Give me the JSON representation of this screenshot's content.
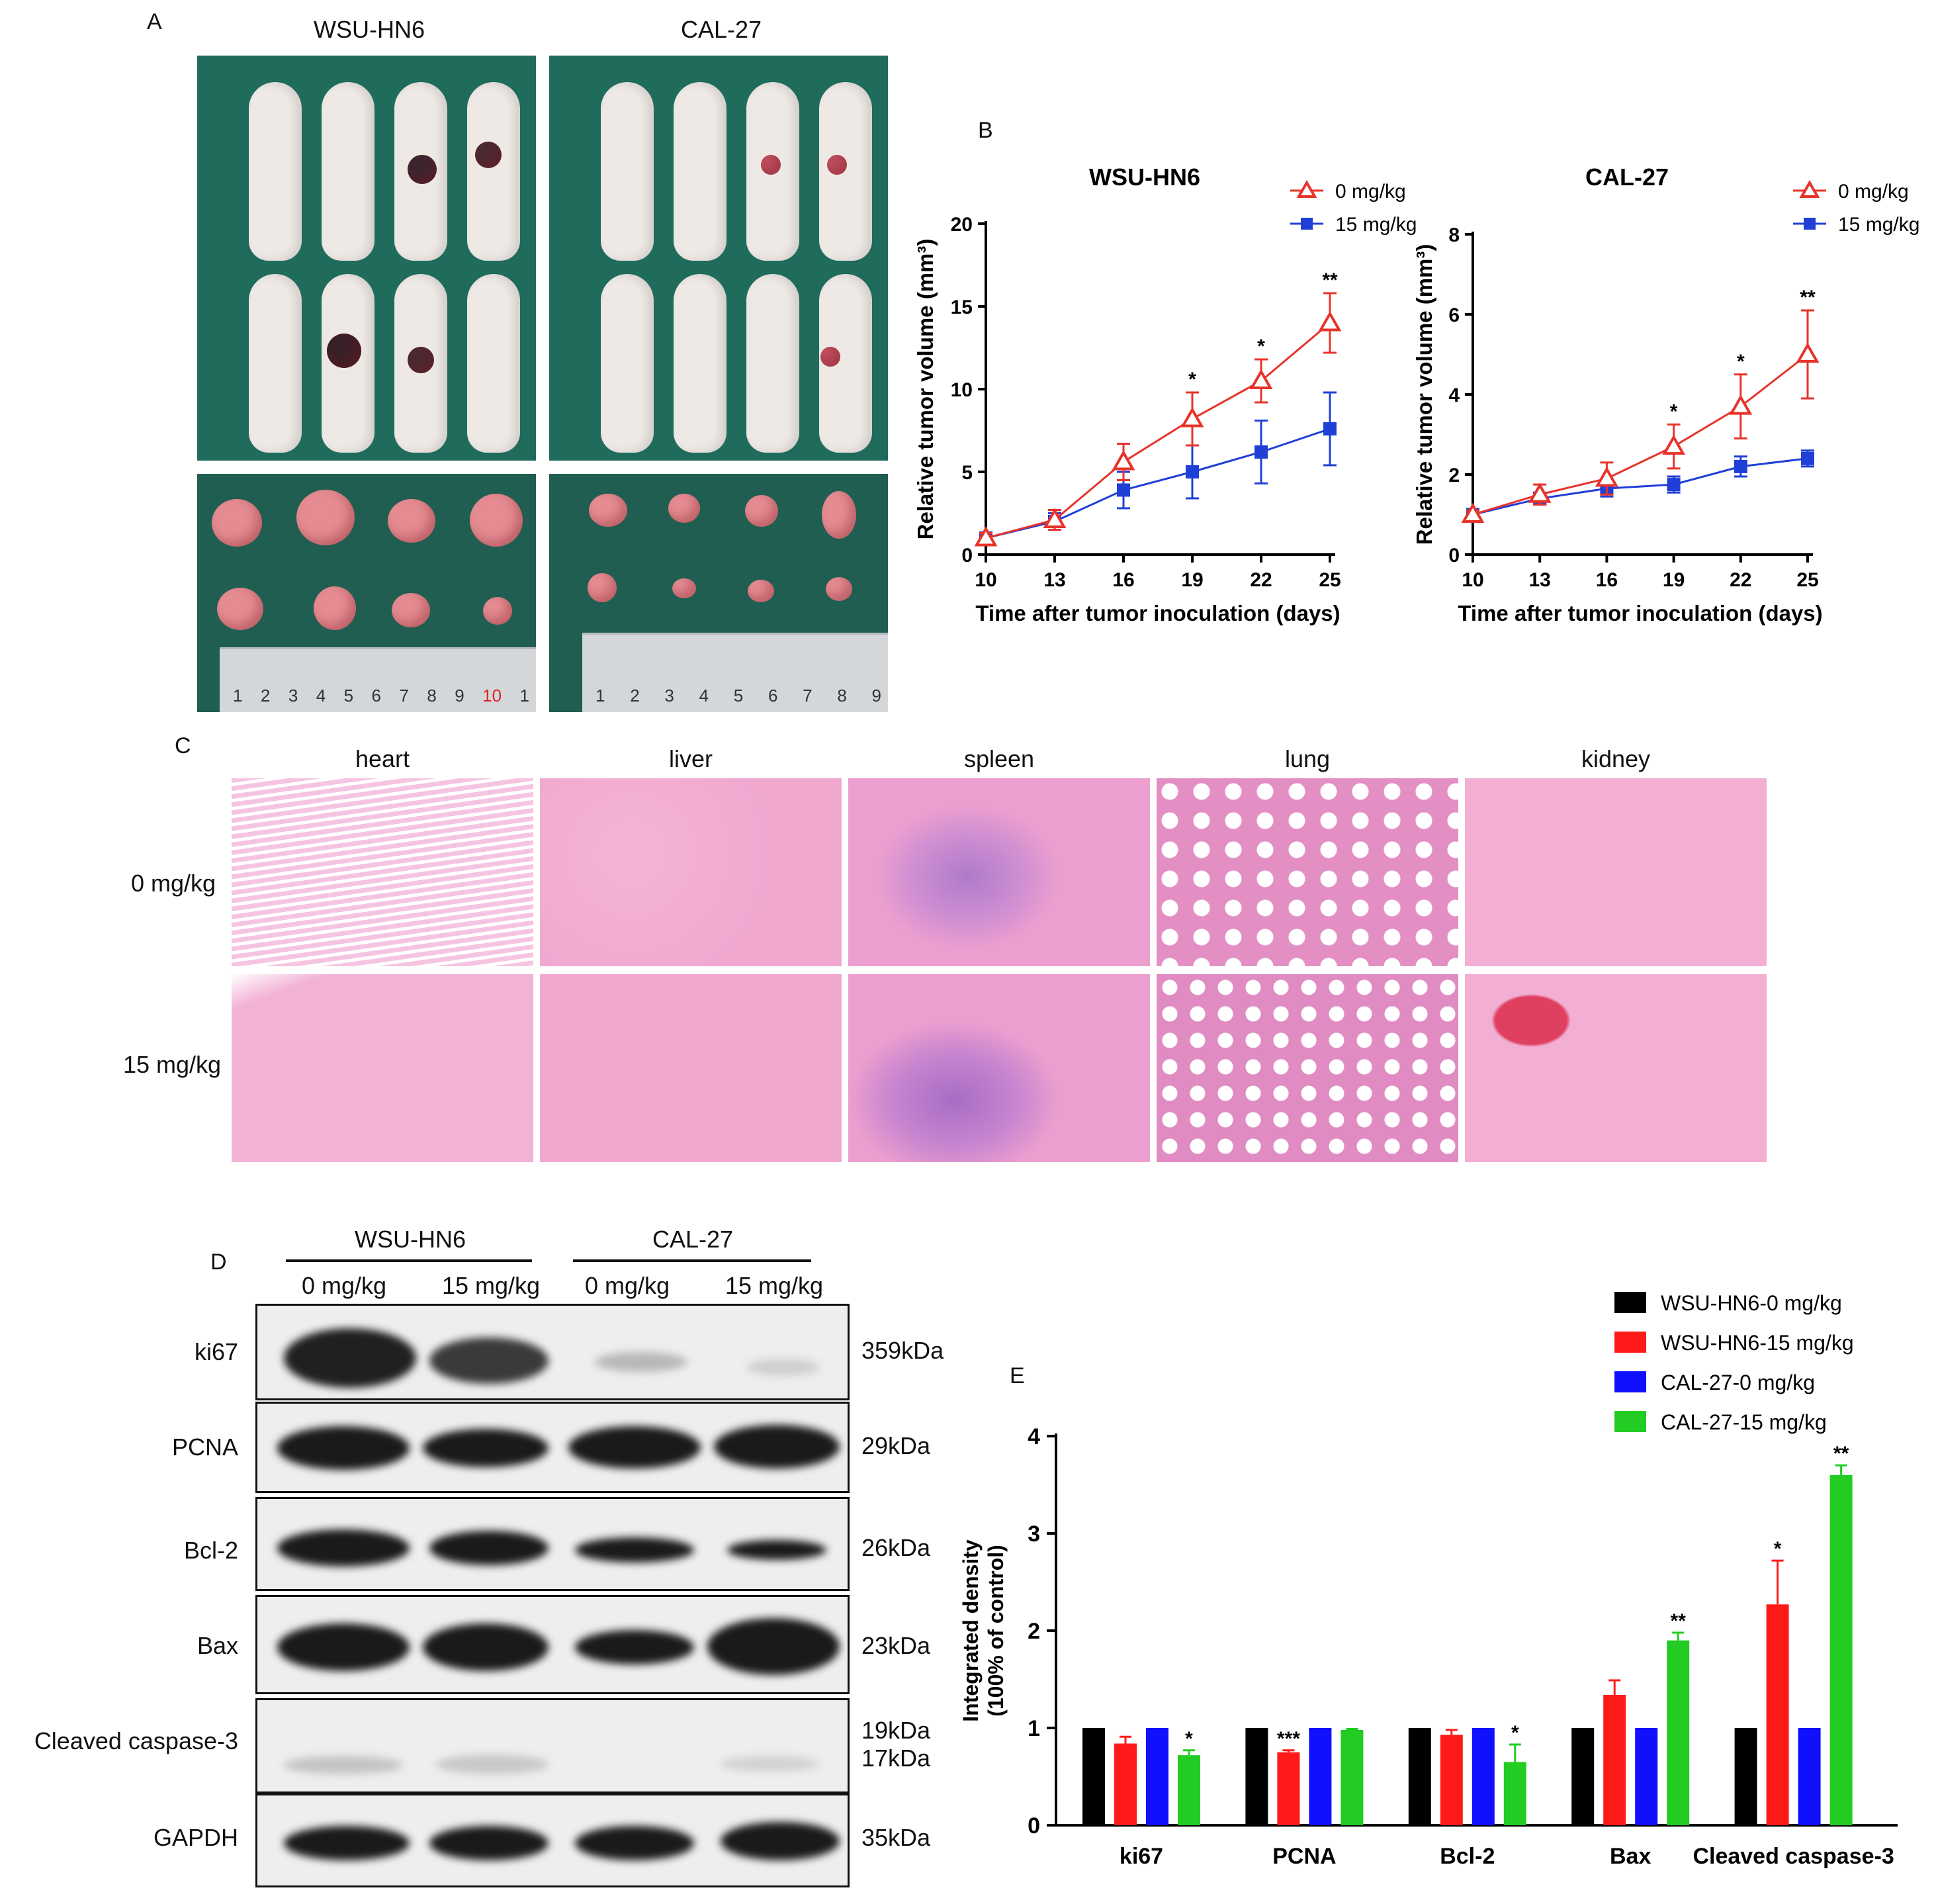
{
  "panels": {
    "A": "A",
    "B": "B",
    "C": "C",
    "D": "D",
    "E": "E"
  },
  "panelA": {
    "titles": [
      "WSU-HN6",
      "CAL-27"
    ],
    "ruler_left": [
      "1",
      "2",
      "3",
      "4",
      "5",
      "6",
      "7",
      "8",
      "9",
      "10",
      "1"
    ],
    "ruler_right": [
      "1",
      "2",
      "3",
      "4",
      "5",
      "6",
      "7",
      "8",
      "9"
    ]
  },
  "panelC": {
    "tissues": [
      "heart",
      "liver",
      "spleen",
      "lung",
      "kidney"
    ],
    "rows": [
      "0 mg/kg",
      "15 mg/kg"
    ],
    "colors": {
      "he_pink": "#f0a8cf",
      "he_purple": "#b07ac9"
    }
  },
  "panelD": {
    "cells": [
      "WSU-HN6",
      "CAL-27"
    ],
    "lanes": [
      "0 mg/kg",
      "15 mg/kg",
      "0 mg/kg",
      "15 mg/kg"
    ],
    "proteins": [
      {
        "name": "ki67",
        "kda": [
          "359kDa"
        ]
      },
      {
        "name": "PCNA",
        "kda": [
          "29kDa"
        ]
      },
      {
        "name": "Bcl-2",
        "kda": [
          "26kDa"
        ]
      },
      {
        "name": "Bax",
        "kda": [
          "23kDa"
        ]
      },
      {
        "name": "Cleaved caspase-3",
        "kda": [
          "19kDa",
          "17kDa"
        ]
      },
      {
        "name": "GAPDH",
        "kda": [
          "35kDa"
        ]
      }
    ]
  },
  "chart_data": [
    {
      "type": "line",
      "title": "WSU-HN6",
      "xlabel": "Time after tumor inoculation (days)",
      "ylabel": "Relative tumor volume (mm³)",
      "x": [
        10,
        13,
        16,
        19,
        22,
        25
      ],
      "xticks": [
        "10",
        "13",
        "16",
        "19",
        "22",
        "25"
      ],
      "yticks": [
        "0",
        "5",
        "10",
        "15",
        "20"
      ],
      "ylim": [
        0,
        20
      ],
      "legend_position": "top-right",
      "series": [
        {
          "name": "0 mg/kg",
          "color": "#e8332a",
          "marker": "open-triangle",
          "values": [
            1.0,
            2.1,
            5.6,
            8.2,
            10.5,
            14.0
          ],
          "err": [
            0.3,
            0.6,
            1.1,
            1.6,
            1.3,
            1.8
          ]
        },
        {
          "name": "15 mg/kg",
          "color": "#1f3fd6",
          "marker": "filled-square",
          "values": [
            1.0,
            2.0,
            3.9,
            5.0,
            6.2,
            7.6
          ],
          "err": [
            0.3,
            0.5,
            1.1,
            1.6,
            1.9,
            2.2
          ]
        }
      ],
      "annotations": [
        "",
        "",
        "",
        "*",
        "*",
        "**"
      ]
    },
    {
      "type": "line",
      "title": "CAL-27",
      "xlabel": "Time after tumor inoculation (days)",
      "ylabel": "Relative tumor volume (mm³)",
      "x": [
        10,
        13,
        16,
        19,
        22,
        25
      ],
      "xticks": [
        "10",
        "13",
        "16",
        "19",
        "22",
        "25"
      ],
      "yticks": [
        "0",
        "2",
        "4",
        "6",
        "8"
      ],
      "ylim": [
        0,
        8
      ],
      "legend_position": "top-right",
      "series": [
        {
          "name": "0 mg/kg",
          "color": "#e8332a",
          "marker": "open-triangle",
          "values": [
            1.0,
            1.5,
            1.9,
            2.7,
            3.7,
            5.0
          ],
          "err": [
            0.1,
            0.25,
            0.4,
            0.55,
            0.8,
            1.1
          ]
        },
        {
          "name": "15 mg/kg",
          "color": "#1f3fd6",
          "marker": "filled-square",
          "values": [
            1.0,
            1.4,
            1.65,
            1.75,
            2.2,
            2.4
          ],
          "err": [
            0.1,
            0.15,
            0.2,
            0.2,
            0.25,
            0.2
          ]
        }
      ],
      "annotations": [
        "",
        "",
        "",
        "*",
        "*",
        "**"
      ]
    },
    {
      "type": "bar",
      "title": "",
      "xlabel": "",
      "ylabel": "Integrated density (100% of control)",
      "categories": [
        "ki67",
        "PCNA",
        "Bcl-2",
        "Bax",
        "Cleaved caspase-3"
      ],
      "yticks": [
        "0",
        "1",
        "2",
        "3",
        "4"
      ],
      "ylim": [
        0,
        4
      ],
      "legend_position": "top-right",
      "series": [
        {
          "name": "WSU-HN6-0 mg/kg",
          "color": "#000000",
          "values": [
            1.0,
            1.0,
            1.0,
            1.0,
            1.0
          ],
          "err": [
            0,
            0,
            0,
            0,
            0
          ]
        },
        {
          "name": "WSU-HN6-15 mg/kg",
          "color": "#ff1a1a",
          "values": [
            0.84,
            0.75,
            0.93,
            1.34,
            2.27
          ],
          "err": [
            0.07,
            0.02,
            0.05,
            0.15,
            0.45
          ]
        },
        {
          "name": "CAL-27-0 mg/kg",
          "color": "#1010ff",
          "values": [
            1.0,
            1.0,
            1.0,
            1.0,
            1.0
          ],
          "err": [
            0,
            0,
            0,
            0,
            0
          ]
        },
        {
          "name": "CAL-27-15 mg/kg",
          "color": "#22cc22",
          "values": [
            0.72,
            0.98,
            0.65,
            1.9,
            3.6
          ],
          "err": [
            0.05,
            0.01,
            0.18,
            0.08,
            0.1
          ]
        }
      ],
      "annotations": [
        {
          "category": "ki67",
          "series": "CAL-27-15 mg/kg",
          "text": "*"
        },
        {
          "category": "PCNA",
          "series": "WSU-HN6-15 mg/kg",
          "text": "***"
        },
        {
          "category": "Bcl-2",
          "series": "CAL-27-15 mg/kg",
          "text": "*"
        },
        {
          "category": "Bax",
          "series": "CAL-27-15 mg/kg",
          "text": "**"
        },
        {
          "category": "Cleaved caspase-3",
          "series": "WSU-HN6-15 mg/kg",
          "text": "*"
        },
        {
          "category": "Cleaved caspase-3",
          "series": "CAL-27-15 mg/kg",
          "text": "**"
        }
      ]
    }
  ]
}
